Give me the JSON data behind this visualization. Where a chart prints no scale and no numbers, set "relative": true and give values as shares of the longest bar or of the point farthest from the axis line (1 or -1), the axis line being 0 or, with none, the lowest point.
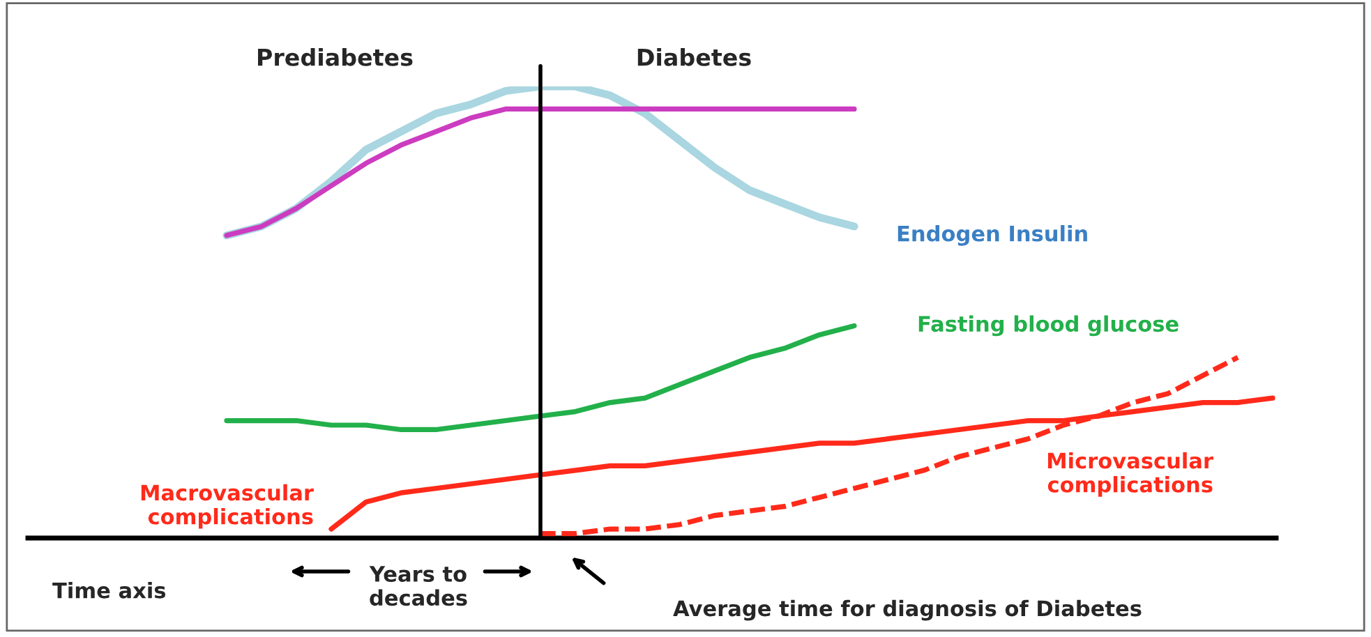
{
  "chart_data": {
    "type": "line",
    "relative": true,
    "categories": [
      null,
      null,
      null,
      null,
      null,
      null,
      null,
      null,
      null,
      null,
      null,
      null,
      null,
      null,
      null,
      null,
      null,
      null,
      null,
      null,
      null,
      null,
      null,
      null,
      null,
      null,
      null,
      null,
      null,
      null,
      null
    ],
    "series": [
      {
        "name": "Endogen Insulin",
        "color": "#a9d6e0",
        "values": [
          0.67,
          0.69,
          0.73,
          0.79,
          0.86,
          0.9,
          0.94,
          0.96,
          0.99,
          1.0,
          1.0,
          0.98,
          0.94,
          0.88,
          0.82,
          0.77,
          0.74,
          0.71,
          0.69,
          null,
          null,
          null,
          null,
          null,
          null,
          null,
          null,
          null,
          null,
          null,
          null
        ]
      },
      {
        "color": "#cc3cc0",
        "values": [
          0.67,
          0.69,
          0.73,
          0.78,
          0.83,
          0.87,
          0.9,
          0.93,
          0.95,
          0.95,
          0.95,
          0.95,
          0.95,
          0.95,
          0.95,
          0.95,
          0.95,
          0.95,
          0.95,
          null,
          null,
          null,
          null,
          null,
          null,
          null,
          null,
          null,
          null,
          null,
          null
        ]
      },
      {
        "name": "Fasting blood glucose",
        "color": "#22b04a",
        "values": [
          0.26,
          0.26,
          0.26,
          0.25,
          0.25,
          0.24,
          0.24,
          0.25,
          0.26,
          0.27,
          0.28,
          0.3,
          0.31,
          0.34,
          0.37,
          0.4,
          0.42,
          0.45,
          0.47,
          null,
          null,
          null,
          null,
          null,
          null,
          null,
          null,
          null,
          null,
          null,
          null
        ]
      },
      {
        "name": "Macrovascular complications",
        "color": "#ff2a1a",
        "values": [
          null,
          null,
          null,
          0.02,
          0.08,
          0.1,
          0.11,
          0.12,
          0.13,
          0.14,
          0.15,
          0.16,
          0.16,
          0.17,
          0.18,
          0.19,
          0.2,
          0.21,
          0.21,
          0.22,
          0.23,
          0.24,
          0.25,
          0.26,
          0.26,
          0.27,
          0.28,
          0.29,
          0.3,
          0.3,
          0.31
        ]
      },
      {
        "name": "Microvascular complications",
        "color": "#ff2a1a",
        "line_style": "dashed",
        "values": [
          null,
          null,
          null,
          null,
          null,
          null,
          null,
          null,
          null,
          0.01,
          0.01,
          0.02,
          0.02,
          0.03,
          0.05,
          0.06,
          0.07,
          0.09,
          0.11,
          0.13,
          0.15,
          0.18,
          0.2,
          0.22,
          0.25,
          0.27,
          0.3,
          0.32,
          0.36,
          0.4,
          null
        ]
      }
    ],
    "annotations": [
      "Prediabetes",
      "Diabetes",
      "Time axis",
      "Years to\ndecades",
      "Average time for diagnosis of Diabetes"
    ],
    "legend": false,
    "marker": "none"
  }
}
